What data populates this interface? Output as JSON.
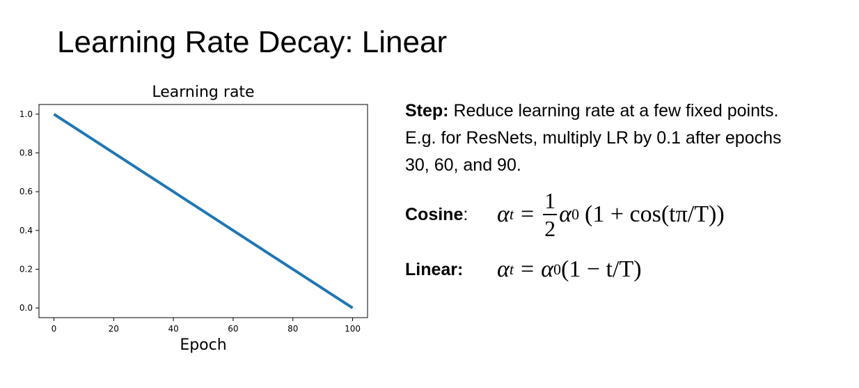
{
  "slide": {
    "title_emph": "Learning Rate Decay",
    "title_rest": ": Linear"
  },
  "text": {
    "step_label": "Step:",
    "step_text": " Reduce learning rate at a few fixed points.",
    "step_line2": "E.g. for ResNets, multiply LR by 0.1 after epochs",
    "step_line3": "30, 60, and 90.",
    "cosine_label": "Cosine",
    "cosine_colon": ":",
    "linear_label": "Linear:"
  },
  "formulas": {
    "cosine": {
      "lhs": "α",
      "lhs_sub": "t",
      "eq": "=",
      "frac_num": "1",
      "frac_den": "2",
      "a0": "α",
      "a0_sub": "0",
      "rest": "(1 + cos(tπ/T))"
    },
    "linear": {
      "lhs": "α",
      "lhs_sub": "t",
      "eq": "=",
      "a0": "α",
      "a0_sub": "0",
      "rest": "(1 − t/T)"
    }
  },
  "chart_data": {
    "type": "line",
    "title": "Learning rate",
    "xlabel": "Epoch",
    "ylabel": "",
    "xlim": [
      -5,
      105
    ],
    "ylim": [
      -0.05,
      1.05
    ],
    "xticks": [
      0,
      20,
      40,
      60,
      80,
      100
    ],
    "xtick_labels": [
      "0",
      "20",
      "40",
      "60",
      "80",
      "100"
    ],
    "yticks": [
      0.0,
      0.2,
      0.4,
      0.6,
      0.8,
      1.0
    ],
    "ytick_labels": [
      "0.0",
      "0.2",
      "0.4",
      "0.6",
      "0.8",
      "1.0"
    ],
    "grid": false,
    "series": [
      {
        "name": "Learning rate",
        "color": "#1f77b4",
        "x": [
          0,
          100
        ],
        "y": [
          1.0,
          0.0
        ]
      }
    ]
  }
}
